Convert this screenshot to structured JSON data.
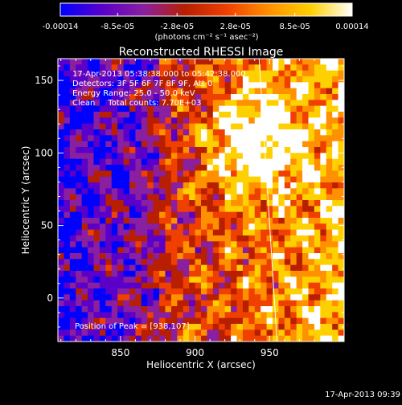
{
  "colorbar": {
    "tick_labels": [
      "-0.00014",
      "-8.5e-05",
      "-2.8e-05",
      "2.8e-05",
      "8.5e-05",
      "0.00014"
    ],
    "tick_values": [
      -0.00014,
      -8.5e-05,
      -2.8e-05,
      2.8e-05,
      8.5e-05,
      0.00014
    ],
    "range": [
      -0.00014,
      0.00014
    ],
    "unit_label": "(photons cm⁻² s⁻¹ asec⁻²)",
    "colors": [
      "#0000ff",
      "#5a00c8",
      "#8a1fa0",
      "#b81f00",
      "#f04000",
      "#ff9000",
      "#ffd000",
      "#ffffff"
    ]
  },
  "chart_data": {
    "type": "heatmap",
    "title": "Reconstructed RHESSI Image",
    "xlabel": "Heliocentric X (arcsec)",
    "ylabel": "Heliocentric Y (arcsec)",
    "xlim": [
      808,
      1000
    ],
    "ylim": [
      -30,
      165
    ],
    "x_ticks": [
      850,
      900,
      950
    ],
    "y_ticks": [
      0,
      50,
      100,
      150
    ],
    "peak": {
      "x": 938,
      "y": 107
    },
    "limb_line": [
      {
        "x": 943,
        "y": 165
      },
      {
        "x": 955,
        "y": -30
      }
    ],
    "annotations": [
      "17-Apr-2013 05:38:38.000 to 05:42:38.000",
      "Detectors: 3F 5F 6F 7F 8F 9F, Att 0",
      "Energy Range: 25.0 - 50.0 keV",
      "Clean     Total counts: 7.70E+03"
    ],
    "peak_label": "Position of Peak = [938,107]"
  },
  "footer": {
    "timestamp": "17-Apr-2013 09:39"
  }
}
